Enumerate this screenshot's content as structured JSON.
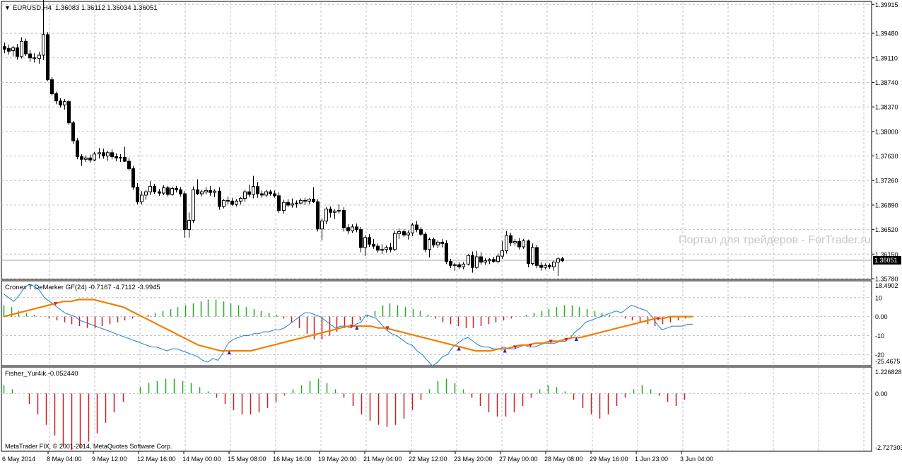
{
  "main_header": {
    "arrow": "▼",
    "symbol": "EURUSD,H4",
    "ohlc": "1.36083 1.36112 1.36034 1.36051"
  },
  "main_axis": {
    "ticks": [
      "1.39915",
      "1.39480",
      "1.39110",
      "1.38740",
      "1.38370",
      "1.38000",
      "1.37630",
      "1.37260",
      "1.36890",
      "1.36520",
      "1.36150",
      "1.35780"
    ],
    "price_badge": "1.36051"
  },
  "watermark": "Портал для трейдеров - ForTrader.ru",
  "demarker": {
    "title": "Cronex T DeMarker GF(24) -0.7167 -4.7112 -3.9945",
    "ticks": [
      "18.4902",
      "10",
      "0.00",
      "-10",
      "-20",
      "-25.4675"
    ]
  },
  "fisher": {
    "title": "Fisher_Yur4ik -0.052440",
    "ticks": [
      "1.226828",
      "0.00",
      "-2.727303"
    ]
  },
  "copyright": "MetaTrader FIX, © 2001-2014, MetaQuotes Software Corp.",
  "time_axis": [
    "6 May 2014",
    "8 May 04:00",
    "9 May 12:00",
    "12 May 16:00",
    "14 May 00:00",
    "15 May 08:00",
    "16 May 16:00",
    "19 May 20:00",
    "21 May 04:00",
    "22 May 12:00",
    "23 May 20:00",
    "27 May 00:00",
    "28 May 08:00",
    "29 May 16:00",
    "1 Jun 23:00",
    "3 Jun 04:00"
  ],
  "colors": {
    "bull_candle": "#ffffff",
    "bear_candle": "#000000",
    "grid": "#c0c0c0",
    "demarker_line": "#1e7fd8",
    "signal_line": "#f08000",
    "positive_hist": "#22aa22",
    "negative_hist": "#c81e1e",
    "arrow_up": "#2020d0",
    "arrow_down": "#e02020"
  },
  "chart_data": {
    "type": "candlestick",
    "symbol": "EURUSD",
    "timeframe": "H4",
    "ylim": [
      1.3578,
      1.3995
    ],
    "candles": [
      [
        1.3928,
        1.3934,
        1.3918,
        1.3924
      ],
      [
        1.3925,
        1.3931,
        1.3916,
        1.3921
      ],
      [
        1.3922,
        1.3929,
        1.3913,
        1.3926
      ],
      [
        1.3926,
        1.3932,
        1.3908,
        1.3913
      ],
      [
        1.3913,
        1.3942,
        1.391,
        1.3936
      ],
      [
        1.3936,
        1.394,
        1.3914,
        1.3917
      ],
      [
        1.3917,
        1.3923,
        1.3905,
        1.3911
      ],
      [
        1.3911,
        1.3918,
        1.3904,
        1.391
      ],
      [
        1.391,
        1.392,
        1.3902,
        1.3915
      ],
      [
        1.3915,
        1.4002,
        1.3908,
        1.3946
      ],
      [
        1.3946,
        1.395,
        1.3876,
        1.3878
      ],
      [
        1.3878,
        1.3882,
        1.3854,
        1.3857
      ],
      [
        1.3857,
        1.386,
        1.3841,
        1.3846
      ],
      [
        1.3846,
        1.385,
        1.3836,
        1.384
      ],
      [
        1.384,
        1.3849,
        1.3833,
        1.3845
      ],
      [
        1.3845,
        1.3847,
        1.381,
        1.3813
      ],
      [
        1.3813,
        1.3816,
        1.3781,
        1.3786
      ],
      [
        1.3786,
        1.379,
        1.3758,
        1.3762
      ],
      [
        1.3762,
        1.3766,
        1.3748,
        1.3758
      ],
      [
        1.3758,
        1.3764,
        1.3754,
        1.376
      ],
      [
        1.376,
        1.3765,
        1.3753,
        1.3757
      ],
      [
        1.3757,
        1.3769,
        1.3755,
        1.3766
      ],
      [
        1.3766,
        1.3775,
        1.3759,
        1.3768
      ],
      [
        1.3768,
        1.3774,
        1.3759,
        1.3763
      ],
      [
        1.3763,
        1.3771,
        1.3756,
        1.3768
      ],
      [
        1.3768,
        1.3773,
        1.3758,
        1.3762
      ],
      [
        1.3762,
        1.3767,
        1.3755,
        1.376
      ],
      [
        1.376,
        1.3766,
        1.3754,
        1.3761
      ],
      [
        1.3761,
        1.3777,
        1.3754,
        1.3755
      ],
      [
        1.3755,
        1.376,
        1.3741,
        1.3744
      ],
      [
        1.3744,
        1.3748,
        1.3712,
        1.3716
      ],
      [
        1.3716,
        1.3722,
        1.369,
        1.3694
      ],
      [
        1.3694,
        1.371,
        1.369,
        1.3704
      ],
      [
        1.3704,
        1.3712,
        1.3697,
        1.3709
      ],
      [
        1.3709,
        1.3725,
        1.3704,
        1.3717
      ],
      [
        1.3717,
        1.3721,
        1.3706,
        1.3709
      ],
      [
        1.3709,
        1.3713,
        1.3703,
        1.3707
      ],
      [
        1.3707,
        1.3719,
        1.3704,
        1.3715
      ],
      [
        1.3715,
        1.3718,
        1.3702,
        1.3705
      ],
      [
        1.3705,
        1.3717,
        1.3703,
        1.3714
      ],
      [
        1.3714,
        1.3718,
        1.3708,
        1.3712
      ],
      [
        1.3712,
        1.3716,
        1.3702,
        1.3706
      ],
      [
        1.3706,
        1.371,
        1.364,
        1.3652
      ],
      [
        1.3652,
        1.3678,
        1.364,
        1.3666
      ],
      [
        1.3666,
        1.3717,
        1.3662,
        1.3712
      ],
      [
        1.3712,
        1.3728,
        1.3704,
        1.3706
      ],
      [
        1.3706,
        1.3712,
        1.3702,
        1.3709
      ],
      [
        1.3709,
        1.3716,
        1.3705,
        1.3711
      ],
      [
        1.3711,
        1.3718,
        1.3703,
        1.3708
      ],
      [
        1.3708,
        1.3713,
        1.3701,
        1.371
      ],
      [
        1.371,
        1.3716,
        1.3682,
        1.3687
      ],
      [
        1.3687,
        1.3698,
        1.3684,
        1.3696
      ],
      [
        1.3696,
        1.3702,
        1.369,
        1.3695
      ],
      [
        1.3695,
        1.37,
        1.3688,
        1.369
      ],
      [
        1.369,
        1.3698,
        1.3687,
        1.3695
      ],
      [
        1.3695,
        1.3701,
        1.369,
        1.3699
      ],
      [
        1.3699,
        1.3712,
        1.3694,
        1.3709
      ],
      [
        1.3709,
        1.372,
        1.3701,
        1.3705
      ],
      [
        1.3705,
        1.3733,
        1.3699,
        1.3717
      ],
      [
        1.3717,
        1.3724,
        1.37,
        1.3706
      ],
      [
        1.3706,
        1.3711,
        1.37,
        1.3704
      ],
      [
        1.3704,
        1.3712,
        1.3701,
        1.3709
      ],
      [
        1.3709,
        1.3712,
        1.3703,
        1.3706
      ],
      [
        1.3706,
        1.3711,
        1.37,
        1.3703
      ],
      [
        1.3703,
        1.3708,
        1.3677,
        1.3681
      ],
      [
        1.3681,
        1.3697,
        1.3676,
        1.3693
      ],
      [
        1.3693,
        1.3698,
        1.3686,
        1.3689
      ],
      [
        1.3689,
        1.3699,
        1.3685,
        1.3691
      ],
      [
        1.3691,
        1.3696,
        1.3685,
        1.3692
      ],
      [
        1.3692,
        1.3699,
        1.369,
        1.3696
      ],
      [
        1.3696,
        1.37,
        1.3689,
        1.3695
      ],
      [
        1.3695,
        1.3699,
        1.369,
        1.3698
      ],
      [
        1.3698,
        1.3716,
        1.3692,
        1.3694
      ],
      [
        1.3694,
        1.3698,
        1.3649,
        1.3653
      ],
      [
        1.3653,
        1.3669,
        1.3636,
        1.3665
      ],
      [
        1.3665,
        1.3686,
        1.366,
        1.3683
      ],
      [
        1.3683,
        1.3687,
        1.367,
        1.3678
      ],
      [
        1.3678,
        1.3683,
        1.3668,
        1.368
      ],
      [
        1.368,
        1.369,
        1.3676,
        1.3681
      ],
      [
        1.3681,
        1.3686,
        1.3649,
        1.3655
      ],
      [
        1.3655,
        1.366,
        1.3645,
        1.365
      ],
      [
        1.365,
        1.366,
        1.3647,
        1.3656
      ],
      [
        1.3656,
        1.3661,
        1.3648,
        1.3652
      ],
      [
        1.3652,
        1.3656,
        1.3618,
        1.3625
      ],
      [
        1.3625,
        1.3644,
        1.3612,
        1.364
      ],
      [
        1.364,
        1.3645,
        1.3626,
        1.363
      ],
      [
        1.363,
        1.3638,
        1.3623,
        1.3627
      ],
      [
        1.3627,
        1.3631,
        1.3617,
        1.3621
      ],
      [
        1.3621,
        1.363,
        1.3615,
        1.3622
      ],
      [
        1.3622,
        1.3628,
        1.3617,
        1.3625
      ],
      [
        1.3625,
        1.3632,
        1.3618,
        1.3622
      ],
      [
        1.3622,
        1.365,
        1.362,
        1.3646
      ],
      [
        1.3646,
        1.3654,
        1.3638,
        1.3649
      ],
      [
        1.3649,
        1.3653,
        1.3641,
        1.3644
      ],
      [
        1.3644,
        1.3651,
        1.3637,
        1.3647
      ],
      [
        1.3647,
        1.3662,
        1.3642,
        1.3659
      ],
      [
        1.3659,
        1.3665,
        1.3648,
        1.3652
      ],
      [
        1.3652,
        1.3656,
        1.3642,
        1.3645
      ],
      [
        1.3645,
        1.3648,
        1.3618,
        1.3622
      ],
      [
        1.3622,
        1.364,
        1.361,
        1.3637
      ],
      [
        1.3637,
        1.364,
        1.3625,
        1.3629
      ],
      [
        1.3629,
        1.3636,
        1.3624,
        1.3633
      ],
      [
        1.3633,
        1.3638,
        1.3625,
        1.3631
      ],
      [
        1.3631,
        1.3636,
        1.36,
        1.3604
      ],
      [
        1.3604,
        1.3608,
        1.3594,
        1.3598
      ],
      [
        1.3598,
        1.3602,
        1.359,
        1.3599
      ],
      [
        1.3599,
        1.3603,
        1.3593,
        1.3596
      ],
      [
        1.3596,
        1.3603,
        1.3592,
        1.36
      ],
      [
        1.36,
        1.3615,
        1.3598,
        1.3613
      ],
      [
        1.3613,
        1.3619,
        1.3587,
        1.3595
      ],
      [
        1.3595,
        1.362,
        1.3593,
        1.3611
      ],
      [
        1.3611,
        1.3618,
        1.3599,
        1.3603
      ],
      [
        1.3603,
        1.3609,
        1.3599,
        1.3605
      ],
      [
        1.3605,
        1.3609,
        1.36,
        1.3607
      ],
      [
        1.3607,
        1.3611,
        1.3602,
        1.3604
      ],
      [
        1.3604,
        1.3616,
        1.3601,
        1.3612
      ],
      [
        1.3612,
        1.3635,
        1.3608,
        1.362
      ],
      [
        1.362,
        1.365,
        1.3616,
        1.3643
      ],
      [
        1.3643,
        1.3647,
        1.3627,
        1.3632
      ],
      [
        1.3632,
        1.3638,
        1.3628,
        1.3634
      ],
      [
        1.3634,
        1.3639,
        1.3622,
        1.3626
      ],
      [
        1.3626,
        1.3638,
        1.3623,
        1.3635
      ],
      [
        1.3635,
        1.3637,
        1.3595,
        1.3601
      ],
      [
        1.3601,
        1.3631,
        1.3598,
        1.3625
      ],
      [
        1.3625,
        1.3629,
        1.3594,
        1.3598
      ],
      [
        1.3598,
        1.3603,
        1.359,
        1.3595
      ],
      [
        1.3595,
        1.3601,
        1.3592,
        1.3598
      ],
      [
        1.3598,
        1.3601,
        1.3593,
        1.3596
      ],
      [
        1.3596,
        1.3605,
        1.359,
        1.3603
      ],
      [
        1.3603,
        1.361,
        1.3582,
        1.3608
      ],
      [
        1.3608,
        1.3611,
        1.3603,
        1.3605
      ]
    ],
    "demarker_ylim": [
      -25.4675,
      18.4902
    ],
    "demarker_line": [
      12,
      10,
      8,
      11,
      15,
      17,
      16,
      14,
      10,
      8,
      6,
      4,
      2,
      1,
      0,
      -2,
      -3,
      -4,
      -5,
      -6,
      -7,
      -8,
      -9,
      -10,
      -11,
      -12,
      -13,
      -14,
      -15,
      -16,
      -16,
      -17,
      -18,
      -17,
      -17,
      -18,
      -19,
      -20,
      -21,
      -23,
      -24,
      -22,
      -23,
      -19,
      -14,
      -12,
      -11,
      -10,
      -10,
      -9,
      -9,
      -8,
      -8,
      -7,
      -7,
      -6,
      -4,
      -2,
      0,
      2,
      2,
      1,
      0,
      -2,
      -4,
      -6,
      -5,
      -5,
      -6,
      -4,
      -3,
      1,
      0,
      -1,
      -4,
      -7,
      -9,
      -10,
      -12,
      -14,
      -15,
      -18,
      -20,
      -23,
      -26,
      -24,
      -21,
      -20,
      -16,
      -14,
      -12,
      -11,
      -13,
      -15,
      -16,
      -16,
      -17,
      -17,
      -16,
      -17,
      -17,
      -16,
      -15,
      -16,
      -16,
      -15,
      -14,
      -14,
      -14,
      -13,
      -13,
      -11,
      -8,
      -6,
      -3,
      -2,
      -1,
      0,
      1,
      2,
      3,
      2,
      4,
      6,
      5,
      4,
      3,
      0,
      -4,
      -7,
      -6,
      -5,
      -5,
      -5,
      -4,
      -4
    ],
    "signal_line": [
      0,
      1,
      2,
      3,
      4,
      5,
      6,
      7,
      8,
      8,
      9,
      9,
      9,
      8,
      7,
      6,
      5,
      3,
      1,
      -1,
      -3,
      -5,
      -7,
      -9,
      -11,
      -13,
      -15,
      -16,
      -17,
      -18,
      -18,
      -18,
      -18,
      -18,
      -17,
      -16,
      -15,
      -14,
      -13,
      -12,
      -11,
      -10,
      -9,
      -8,
      -7,
      -6,
      -5,
      -5,
      -5,
      -5,
      -6,
      -6,
      -7,
      -8,
      -9,
      -10,
      -11,
      -12,
      -13,
      -14,
      -15,
      -16,
      -17,
      -18,
      -18,
      -18,
      -17,
      -17,
      -16,
      -15,
      -15,
      -14,
      -14,
      -13,
      -13,
      -12,
      -11,
      -11,
      -10,
      -9,
      -8,
      -7,
      -6,
      -5,
      -4,
      -3,
      -2,
      -1,
      -1,
      0,
      0,
      0,
      0
    ],
    "demarker_histogram": [
      6,
      5,
      3,
      2,
      1,
      0,
      -1,
      -2,
      -3,
      -4,
      -5,
      -6,
      -6,
      -5,
      -4,
      -3,
      -2,
      -1,
      0,
      1,
      2,
      3,
      4,
      5,
      6,
      7,
      8,
      9,
      9,
      8,
      7,
      6,
      5,
      4,
      3,
      2,
      1,
      -1,
      -3,
      -6,
      -9,
      -12,
      -12,
      -10,
      -8,
      -6,
      -4,
      -2,
      1,
      3,
      6,
      7,
      6,
      5,
      4,
      3,
      1,
      -1,
      -3,
      -4,
      -5,
      -6,
      -6,
      -5,
      -4,
      -3,
      -2,
      -1,
      0,
      1,
      2,
      3,
      4,
      5,
      6,
      6,
      5,
      4,
      3,
      2,
      1,
      0,
      -1,
      -2,
      -3,
      -4,
      -5,
      -4,
      -3,
      -2,
      -1,
      0
    ],
    "fisher_ylim": [
      -2.727303,
      1.226828
    ],
    "fisher_histogram": [
      0.4,
      0.2,
      0,
      -0.5,
      -1.0,
      -1.5,
      -2.0,
      -2.5,
      -2.7,
      -2.6,
      -2.3,
      -1.9,
      -1.4,
      -0.9,
      -0.4,
      0,
      0.3,
      0.5,
      0.6,
      0.7,
      0.7,
      0.6,
      0.5,
      0.3,
      0.1,
      -0.2,
      -0.5,
      -0.8,
      -1.0,
      -1.0,
      -0.9,
      -0.7,
      -0.4,
      -0.1,
      0.2,
      0.4,
      0.6,
      0.7,
      0.5,
      0.2,
      -0.2,
      -0.6,
      -1.0,
      -1.3,
      -1.5,
      -1.6,
      -1.5,
      -1.2,
      -0.8,
      -0.3,
      0.2,
      0.6,
      0.7,
      0.5,
      0.2,
      -0.2,
      -0.6,
      -0.9,
      -1.1,
      -1.1,
      -0.9,
      -0.6,
      -0.2,
      0.2,
      0.4,
      0.3,
      0.1,
      -0.3,
      -0.7,
      -1.0,
      -1.2,
      -1.0,
      -0.6,
      -0.2,
      0.2,
      0.4,
      0.2,
      -0.1,
      -0.4,
      -0.6,
      -0.3,
      0
    ]
  }
}
